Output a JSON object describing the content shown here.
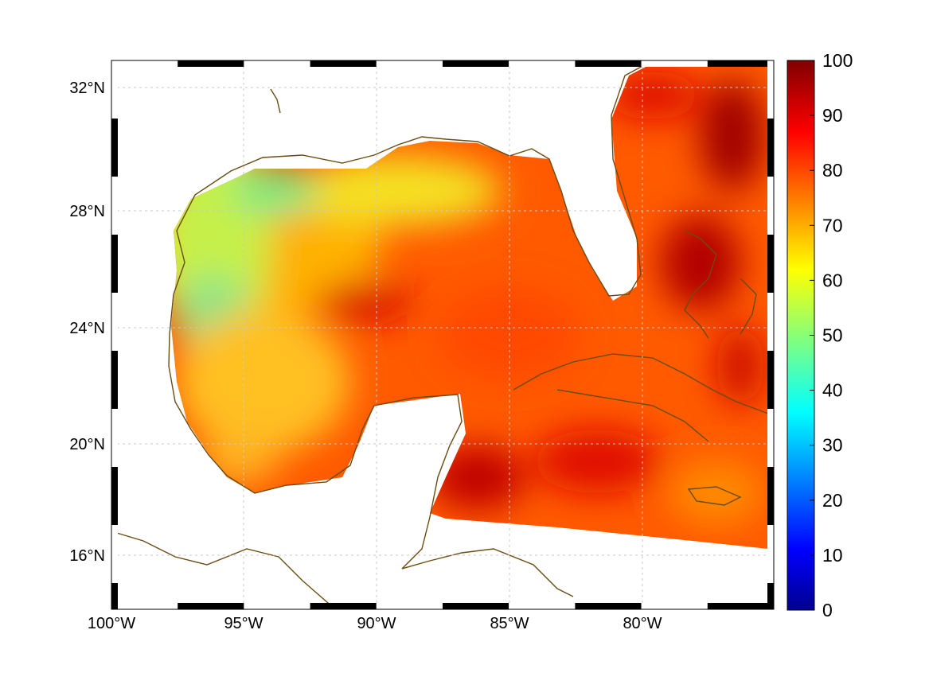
{
  "map": {
    "lat_labels": [
      "32°N",
      "28°N",
      "24°N",
      "20°N",
      "16°N"
    ],
    "lat_values": [
      32,
      28,
      24,
      20,
      16
    ],
    "lon_labels": [
      "100°W",
      "95°W",
      "90°W",
      "85°W",
      "80°W"
    ],
    "lon_values": [
      -100,
      -95,
      -90,
      -85,
      -80
    ],
    "extent": {
      "lon_min": -100,
      "lon_max": -75,
      "lat_min": 14.3,
      "lat_max": 33
    },
    "grid": true,
    "frame_style": "black-white checkered border",
    "coastline_color": "#6b4c12",
    "land_color": "#ffffff"
  },
  "colorbar": {
    "ticks": [
      "100",
      "90",
      "80",
      "70",
      "60",
      "50",
      "40",
      "30",
      "20",
      "10",
      "0"
    ],
    "tick_values": [
      100,
      90,
      80,
      70,
      60,
      50,
      40,
      30,
      20,
      10,
      0
    ],
    "min": 0,
    "max": 100,
    "colormap": "jet"
  }
}
